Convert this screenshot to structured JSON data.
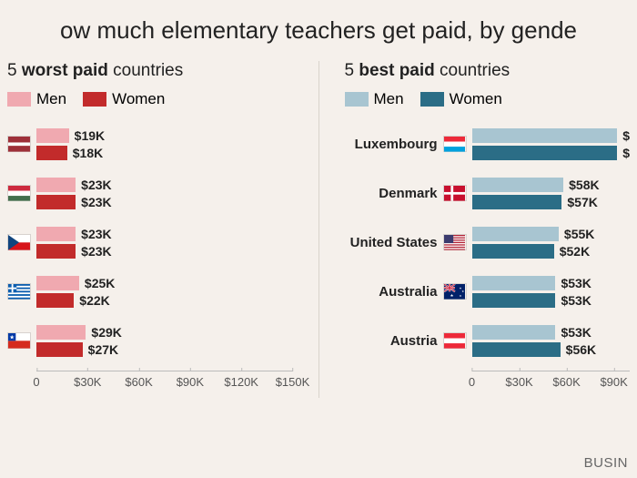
{
  "title": "ow much elementary teachers get paid, by gende",
  "source_fragment": "BUSIN",
  "background_color": "#f5f0eb",
  "worst": {
    "subtitle_prefix": "5 ",
    "subtitle_bold": "worst paid",
    "subtitle_suffix": " countries",
    "legend": {
      "men": "Men",
      "women": "Women"
    },
    "colors": {
      "men": "#f0a9b0",
      "women": "#c22b2b"
    },
    "axis": {
      "max": 150,
      "ticks": [
        "0",
        "$30K",
        "$60K",
        "$90K",
        "$120K",
        "$150K"
      ],
      "tick_vals": [
        0,
        30,
        60,
        90,
        120,
        150
      ]
    },
    "countries": [
      {
        "name": "Latvia",
        "men": 19,
        "women": 18,
        "men_label": "$19K",
        "women_label": "$18K",
        "flag_svg": "latvia"
      },
      {
        "name": "Hungary",
        "men": 23,
        "women": 23,
        "men_label": "$23K",
        "women_label": "$23K",
        "flag_svg": "hungary"
      },
      {
        "name": "Czech",
        "men": 23,
        "women": 23,
        "men_label": "$23K",
        "women_label": "$23K",
        "flag_svg": "czech"
      },
      {
        "name": "Greece",
        "men": 25,
        "women": 22,
        "men_label": "$25K",
        "women_label": "$22K",
        "flag_svg": "greece"
      },
      {
        "name": "Chile",
        "men": 29,
        "women": 27,
        "men_label": "$29K",
        "women_label": "$27K",
        "flag_svg": "chile"
      }
    ]
  },
  "best": {
    "subtitle_prefix": "5 ",
    "subtitle_bold": "best paid",
    "subtitle_suffix": " countries",
    "legend": {
      "men": "Men",
      "women": "Women"
    },
    "colors": {
      "men": "#a8c5d1",
      "women": "#2b6d86"
    },
    "axis": {
      "max": 100,
      "ticks": [
        "0",
        "$30K",
        "$60K",
        "$90K"
      ],
      "tick_vals": [
        0,
        30,
        60,
        90
      ]
    },
    "countries": [
      {
        "name": "Luxembourg",
        "men": 100,
        "women": 98,
        "men_label": "$",
        "women_label": "$",
        "flag_svg": "luxembourg"
      },
      {
        "name": "Denmark",
        "men": 58,
        "women": 57,
        "men_label": "$58K",
        "women_label": "$57K",
        "flag_svg": "denmark"
      },
      {
        "name": "United States",
        "men": 55,
        "women": 52,
        "men_label": "$55K",
        "women_label": "$52K",
        "flag_svg": "usa"
      },
      {
        "name": "Australia",
        "men": 53,
        "women": 53,
        "men_label": "$53K",
        "women_label": "$53K",
        "flag_svg": "australia"
      },
      {
        "name": "Austria",
        "men": 53,
        "women": 56,
        "men_label": "$53K",
        "women_label": "$56K",
        "flag_svg": "austria"
      }
    ]
  }
}
